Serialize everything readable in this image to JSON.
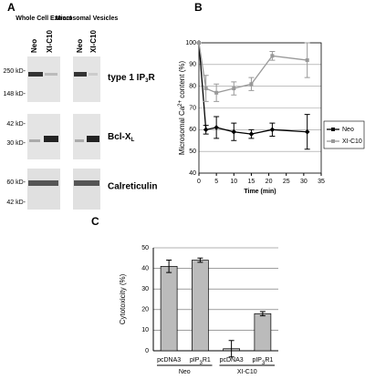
{
  "panel_a": {
    "label": "A",
    "groups": [
      "Whole Cell Extract",
      "Microsomal Vesicles"
    ],
    "lanes": [
      "Neo",
      "XI-C10",
      "Neo",
      "XI-C10"
    ],
    "markers": [
      "250 kD-",
      "148 kD-",
      "42 kD-",
      "30 kD-",
      "60 kD-",
      "42 kD-"
    ],
    "bands": [
      "type 1 IP3R",
      "Bcl-XL",
      "Calreticulin"
    ]
  },
  "chart_data": [
    {
      "type": "line",
      "label": "B",
      "xlabel": "Time (min)",
      "ylabel": "Microsomal Ca2+ content (%)",
      "x": [
        0,
        2,
        5,
        10,
        15,
        21,
        31
      ],
      "xlim": [
        0,
        35
      ],
      "xticks": [
        0,
        5,
        10,
        15,
        20,
        25,
        30,
        35
      ],
      "ylim": [
        40,
        100
      ],
      "yticks": [
        40,
        50,
        60,
        70,
        80,
        90,
        100
      ],
      "grid": true,
      "series": [
        {
          "name": "Neo",
          "color": "#000000",
          "values": [
            100,
            60,
            61,
            59,
            58,
            60,
            59
          ],
          "errors": [
            0,
            2,
            5,
            4,
            2,
            3,
            8
          ]
        },
        {
          "name": "XI-C10",
          "color": "#999999",
          "values": [
            100,
            79,
            77,
            79,
            81,
            94,
            92
          ],
          "errors": [
            0,
            6,
            4,
            3,
            3,
            2,
            8
          ]
        }
      ]
    },
    {
      "type": "bar",
      "label": "C",
      "ylabel": "Cytotoxicity (%)",
      "categories": [
        "pcDNA3",
        "pIP3R1",
        "pcDNA3",
        "pIP3R1"
      ],
      "groups": [
        "Neo",
        "XI-C10"
      ],
      "values": [
        41,
        44,
        1,
        18
      ],
      "errors": [
        3,
        1,
        4,
        1
      ],
      "color": "#bbbbbb",
      "ylim": [
        0,
        50
      ],
      "yticks": [
        0,
        10,
        20,
        30,
        40,
        50
      ],
      "grid": true
    }
  ]
}
